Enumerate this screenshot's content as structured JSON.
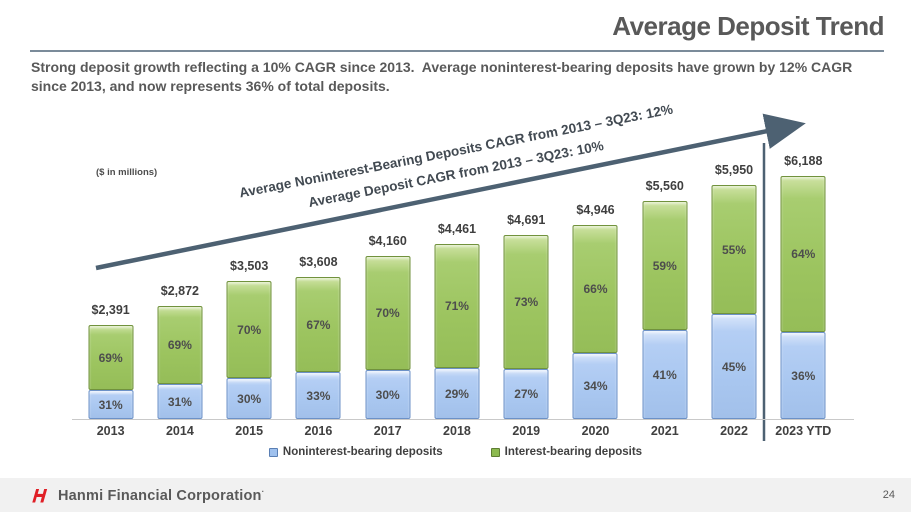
{
  "slide": {
    "title": "Average Deposit Trend",
    "subtitle": "Strong deposit growth reflecting a 10% CAGR since 2013.  Average noninterest-bearing deposits have grown by 12% CAGR since 2013, and now represents 36% of total deposits.",
    "units_note": "($ in millions)",
    "arrow_labels": {
      "noninterest": "Average Noninterest-Bearing Deposits CAGR from 2013 – 3Q23: 12%",
      "total": "Average Deposit CAGR from 2013 – 3Q23: 10%"
    },
    "footer": {
      "brand": "Hanmi Financial Corporation",
      "trademark": "·",
      "page_number": "24"
    },
    "colors": {
      "title_text": "#595959",
      "divider": "#7b8b9a",
      "arrow": "#4d6172",
      "noninterest_fill": "#a9c7f0",
      "noninterest_border": "#6c91c7",
      "interest_fill": "#9cc45f",
      "interest_border": "#71923d",
      "footer_band": "#f1f1f1",
      "logo_red": "#e01f26"
    }
  },
  "chart_data": {
    "type": "bar",
    "stacked": true,
    "title": "Average Deposit Trend",
    "units": "$ in millions",
    "categories": [
      "2013",
      "2014",
      "2015",
      "2016",
      "2017",
      "2018",
      "2019",
      "2020",
      "2021",
      "2022",
      "2023 YTD"
    ],
    "totals": [
      2391,
      2872,
      3503,
      3608,
      4160,
      4461,
      4691,
      4946,
      5560,
      5950,
      6188
    ],
    "totals_display": [
      "$2,391",
      "$2,872",
      "$3,503",
      "$3,608",
      "$4,160",
      "$4,461",
      "$4,691",
      "$4,946",
      "$5,560",
      "$5,950",
      "$6,188"
    ],
    "series": [
      {
        "name": "Noninterest-bearing deposits",
        "color": "#a9c7f0",
        "pct": [
          31,
          31,
          30,
          33,
          30,
          29,
          27,
          34,
          41,
          45,
          36
        ]
      },
      {
        "name": "Interest-bearing deposits",
        "color": "#9cc45f",
        "pct": [
          69,
          69,
          70,
          67,
          70,
          71,
          73,
          66,
          59,
          55,
          64
        ]
      }
    ],
    "legend": [
      "Noninterest-bearing deposits",
      "Interest-bearing deposits"
    ],
    "legend_position": "bottom",
    "grid": false,
    "xlabel": "",
    "ylabel": "",
    "ylim": [
      0,
      7000
    ],
    "separator_after_category": "2022"
  }
}
